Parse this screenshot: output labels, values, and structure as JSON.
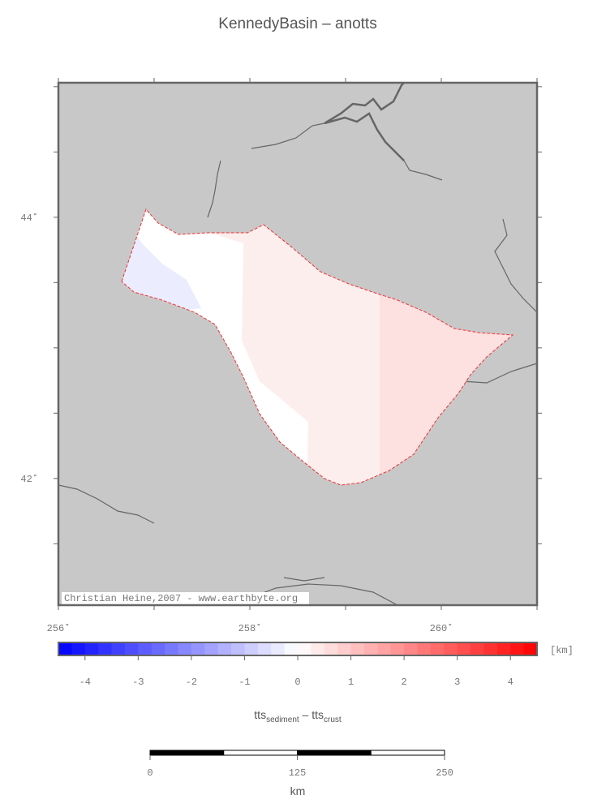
{
  "title": "KennedyBasin – anotts",
  "map": {
    "xlim": [
      256,
      261
    ],
    "ylim": [
      41.03,
      45.03
    ],
    "xticks": [
      {
        "value": 256,
        "label": "256˚"
      },
      {
        "value": 258,
        "label": "258˚"
      },
      {
        "value": 260,
        "label": "260˚"
      }
    ],
    "yticks": [
      {
        "value": 42,
        "label": "42˚"
      },
      {
        "value": 44,
        "label": "44˚"
      }
    ],
    "xminor_ticks": [
      257,
      259,
      261
    ],
    "yminor_ticks": [
      41.5,
      42.5,
      43,
      43.5,
      44.5,
      45
    ],
    "background": "#c8c8c8",
    "credit": "Christian Heine,2007 - www.earthbyte.org"
  },
  "colorbar": {
    "clim": [
      -4.5,
      4.5
    ],
    "ticks": [
      -4,
      -3,
      -2,
      -1,
      0,
      1,
      2,
      3,
      4
    ],
    "steps": 36,
    "low_color": "#0000ff",
    "mid_color": "#ffffff",
    "high_color": "#ff0000",
    "unit": "[km]",
    "label": {
      "term1": "tts",
      "sub1": "sediment",
      "op": " – ",
      "term2": "tts",
      "sub2": "crust"
    }
  },
  "scalebar": {
    "range": [
      0,
      250
    ],
    "ticks": [
      0,
      125,
      250
    ],
    "label": "km"
  }
}
